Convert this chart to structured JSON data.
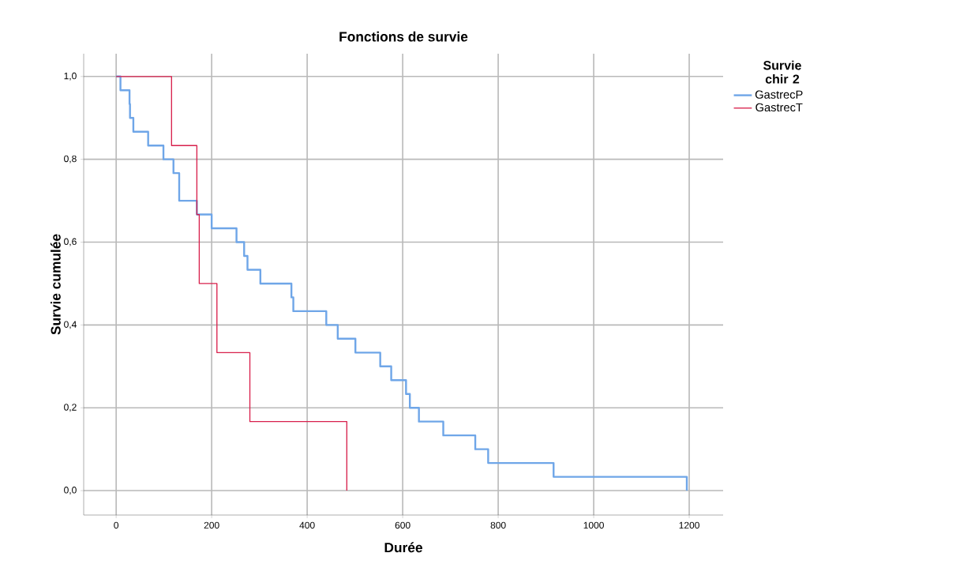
{
  "chart_data": {
    "type": "step",
    "title": "Fonctions de survie",
    "xlabel": "Durée",
    "ylabel": "Survie cumulée",
    "legend_title": "Survie chir 2",
    "xlim": [
      -68,
      1271
    ],
    "ylim": [
      -0.059,
      1.055
    ],
    "xticks": [
      0,
      200,
      400,
      600,
      800,
      1000,
      1200
    ],
    "yticks": [
      {
        "value": 0,
        "label": "0,0"
      },
      {
        "value": 0.2,
        "label": "0,2"
      },
      {
        "value": 0.4,
        "label": "0,4"
      },
      {
        "value": 0.6,
        "label": "0,6"
      },
      {
        "value": 0.8,
        "label": "0,8"
      },
      {
        "value": 1,
        "label": "1,0"
      }
    ],
    "grid": true,
    "legend": "top right",
    "series": [
      {
        "name": "GastrecP",
        "color": "#6fa6e8",
        "x": [
          0,
          9,
          28,
          29,
          36,
          67,
          99,
          120,
          132,
          169,
          200,
          252,
          268,
          275,
          302,
          367,
          371,
          440,
          464,
          501,
          553,
          576,
          607,
          615,
          634,
          685,
          752,
          779,
          916,
          1195
        ],
        "values": [
          1,
          0.9667,
          0.9333,
          0.9,
          0.8667,
          0.8333,
          0.8,
          0.7667,
          0.7,
          0.6667,
          0.6333,
          0.6,
          0.5667,
          0.5333,
          0.5,
          0.4667,
          0.4333,
          0.4,
          0.3667,
          0.3333,
          0.3,
          0.2667,
          0.2333,
          0.2,
          0.1667,
          0.1333,
          0.1,
          0.0667,
          0.0333,
          0
        ]
      },
      {
        "name": "GastrecT",
        "color": "#d8204c",
        "x": [
          0,
          116,
          169,
          174,
          211,
          280,
          483
        ],
        "values": [
          1,
          0.8333,
          0.6667,
          0.5,
          0.3333,
          0.1667,
          0
        ]
      }
    ]
  }
}
